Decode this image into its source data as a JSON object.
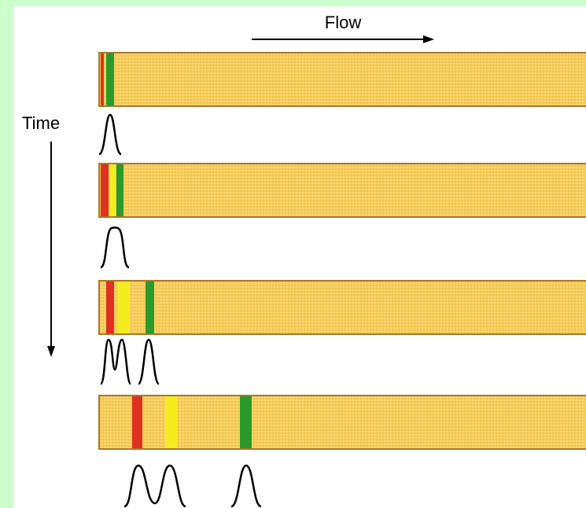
{
  "labels": {
    "flow": "Flow",
    "time": "Time"
  }
}
